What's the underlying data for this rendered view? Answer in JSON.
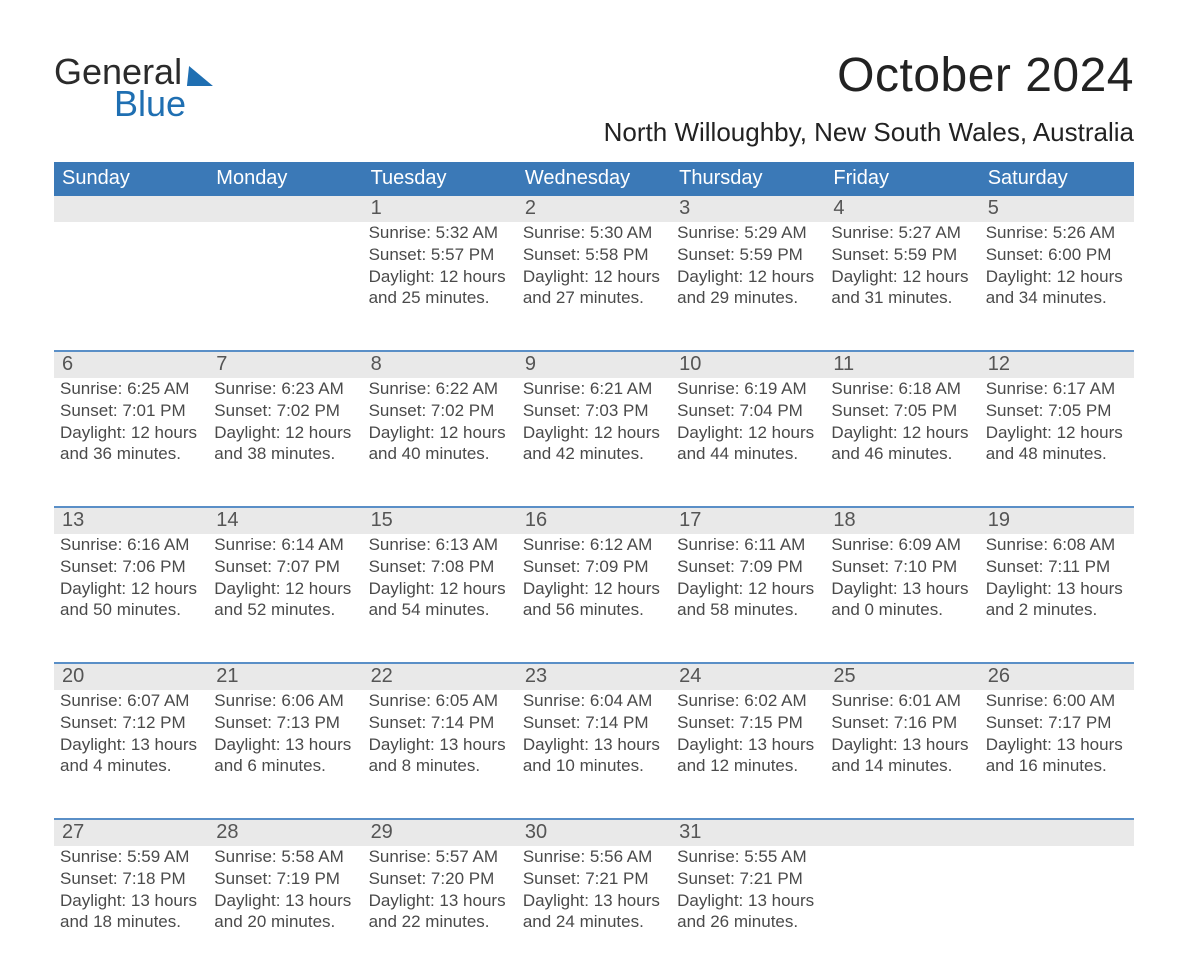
{
  "colors": {
    "header_blue": "#3b79b7",
    "accent_blue": "#1f6fb2",
    "dark_text": "#333333",
    "gray_text": "#4a4a4a",
    "daynum_bg": "#e9e9e9",
    "body_bg": "#ffffff",
    "row_sep": "#5a8fc7"
  },
  "logo": {
    "word1": "General",
    "word2": "Blue"
  },
  "title": "October 2024",
  "location": "North Willoughby, New South Wales, Australia",
  "day_headers": [
    "Sunday",
    "Monday",
    "Tuesday",
    "Wednesday",
    "Thursday",
    "Friday",
    "Saturday"
  ],
  "weeks": [
    [
      {},
      {},
      {
        "n": "1",
        "sr": "Sunrise: 5:32 AM",
        "ss": "Sunset: 5:57 PM",
        "dl": "Daylight: 12 hours and 25 minutes."
      },
      {
        "n": "2",
        "sr": "Sunrise: 5:30 AM",
        "ss": "Sunset: 5:58 PM",
        "dl": "Daylight: 12 hours and 27 minutes."
      },
      {
        "n": "3",
        "sr": "Sunrise: 5:29 AM",
        "ss": "Sunset: 5:59 PM",
        "dl": "Daylight: 12 hours and 29 minutes."
      },
      {
        "n": "4",
        "sr": "Sunrise: 5:27 AM",
        "ss": "Sunset: 5:59 PM",
        "dl": "Daylight: 12 hours and 31 minutes."
      },
      {
        "n": "5",
        "sr": "Sunrise: 5:26 AM",
        "ss": "Sunset: 6:00 PM",
        "dl": "Daylight: 12 hours and 34 minutes."
      }
    ],
    [
      {
        "n": "6",
        "sr": "Sunrise: 6:25 AM",
        "ss": "Sunset: 7:01 PM",
        "dl": "Daylight: 12 hours and 36 minutes."
      },
      {
        "n": "7",
        "sr": "Sunrise: 6:23 AM",
        "ss": "Sunset: 7:02 PM",
        "dl": "Daylight: 12 hours and 38 minutes."
      },
      {
        "n": "8",
        "sr": "Sunrise: 6:22 AM",
        "ss": "Sunset: 7:02 PM",
        "dl": "Daylight: 12 hours and 40 minutes."
      },
      {
        "n": "9",
        "sr": "Sunrise: 6:21 AM",
        "ss": "Sunset: 7:03 PM",
        "dl": "Daylight: 12 hours and 42 minutes."
      },
      {
        "n": "10",
        "sr": "Sunrise: 6:19 AM",
        "ss": "Sunset: 7:04 PM",
        "dl": "Daylight: 12 hours and 44 minutes."
      },
      {
        "n": "11",
        "sr": "Sunrise: 6:18 AM",
        "ss": "Sunset: 7:05 PM",
        "dl": "Daylight: 12 hours and 46 minutes."
      },
      {
        "n": "12",
        "sr": "Sunrise: 6:17 AM",
        "ss": "Sunset: 7:05 PM",
        "dl": "Daylight: 12 hours and 48 minutes."
      }
    ],
    [
      {
        "n": "13",
        "sr": "Sunrise: 6:16 AM",
        "ss": "Sunset: 7:06 PM",
        "dl": "Daylight: 12 hours and 50 minutes."
      },
      {
        "n": "14",
        "sr": "Sunrise: 6:14 AM",
        "ss": "Sunset: 7:07 PM",
        "dl": "Daylight: 12 hours and 52 minutes."
      },
      {
        "n": "15",
        "sr": "Sunrise: 6:13 AM",
        "ss": "Sunset: 7:08 PM",
        "dl": "Daylight: 12 hours and 54 minutes."
      },
      {
        "n": "16",
        "sr": "Sunrise: 6:12 AM",
        "ss": "Sunset: 7:09 PM",
        "dl": "Daylight: 12 hours and 56 minutes."
      },
      {
        "n": "17",
        "sr": "Sunrise: 6:11 AM",
        "ss": "Sunset: 7:09 PM",
        "dl": "Daylight: 12 hours and 58 minutes."
      },
      {
        "n": "18",
        "sr": "Sunrise: 6:09 AM",
        "ss": "Sunset: 7:10 PM",
        "dl": "Daylight: 13 hours and 0 minutes."
      },
      {
        "n": "19",
        "sr": "Sunrise: 6:08 AM",
        "ss": "Sunset: 7:11 PM",
        "dl": "Daylight: 13 hours and 2 minutes."
      }
    ],
    [
      {
        "n": "20",
        "sr": "Sunrise: 6:07 AM",
        "ss": "Sunset: 7:12 PM",
        "dl": "Daylight: 13 hours and 4 minutes."
      },
      {
        "n": "21",
        "sr": "Sunrise: 6:06 AM",
        "ss": "Sunset: 7:13 PM",
        "dl": "Daylight: 13 hours and 6 minutes."
      },
      {
        "n": "22",
        "sr": "Sunrise: 6:05 AM",
        "ss": "Sunset: 7:14 PM",
        "dl": "Daylight: 13 hours and 8 minutes."
      },
      {
        "n": "23",
        "sr": "Sunrise: 6:04 AM",
        "ss": "Sunset: 7:14 PM",
        "dl": "Daylight: 13 hours and 10 minutes."
      },
      {
        "n": "24",
        "sr": "Sunrise: 6:02 AM",
        "ss": "Sunset: 7:15 PM",
        "dl": "Daylight: 13 hours and 12 minutes."
      },
      {
        "n": "25",
        "sr": "Sunrise: 6:01 AM",
        "ss": "Sunset: 7:16 PM",
        "dl": "Daylight: 13 hours and 14 minutes."
      },
      {
        "n": "26",
        "sr": "Sunrise: 6:00 AM",
        "ss": "Sunset: 7:17 PM",
        "dl": "Daylight: 13 hours and 16 minutes."
      }
    ],
    [
      {
        "n": "27",
        "sr": "Sunrise: 5:59 AM",
        "ss": "Sunset: 7:18 PM",
        "dl": "Daylight: 13 hours and 18 minutes."
      },
      {
        "n": "28",
        "sr": "Sunrise: 5:58 AM",
        "ss": "Sunset: 7:19 PM",
        "dl": "Daylight: 13 hours and 20 minutes."
      },
      {
        "n": "29",
        "sr": "Sunrise: 5:57 AM",
        "ss": "Sunset: 7:20 PM",
        "dl": "Daylight: 13 hours and 22 minutes."
      },
      {
        "n": "30",
        "sr": "Sunrise: 5:56 AM",
        "ss": "Sunset: 7:21 PM",
        "dl": "Daylight: 13 hours and 24 minutes."
      },
      {
        "n": "31",
        "sr": "Sunrise: 5:55 AM",
        "ss": "Sunset: 7:21 PM",
        "dl": "Daylight: 13 hours and 26 minutes."
      },
      {},
      {}
    ]
  ]
}
